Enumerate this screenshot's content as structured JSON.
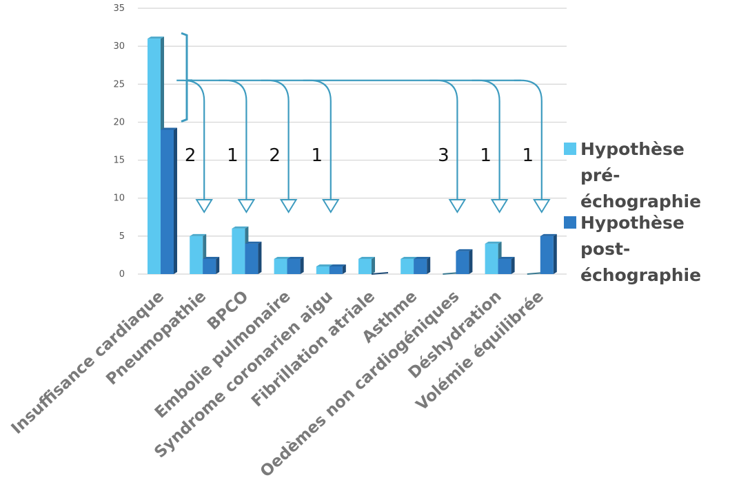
{
  "chart_data": {
    "type": "bar",
    "categories": [
      "Insuffisance cardiaque",
      "Pneumopathie",
      "BPCO",
      "Embolie pulmonaire",
      "Syndrome coronarien aigu",
      "Fibrillation atriale",
      "Asthme",
      "Oedèmes non cardiogéniques",
      "Déshydration",
      "Volémie équilibrée"
    ],
    "series": [
      {
        "name": "Hypothèse pré-échographie",
        "values": [
          31,
          5,
          6,
          2,
          1,
          2,
          2,
          0,
          4,
          0
        ],
        "color": "#5bc8f0"
      },
      {
        "name": "Hypothèse post-échographie",
        "values": [
          19,
          2,
          4,
          2,
          1,
          0,
          2,
          3,
          2,
          5
        ],
        "color": "#2e7bc4"
      }
    ],
    "ylim": [
      0,
      35
    ],
    "yticks": [
      0,
      5,
      10,
      15,
      20,
      25,
      30,
      35
    ],
    "grid": true,
    "legend_position": "right",
    "annotations": {
      "type": "reclassification-arrows",
      "from_category": "Insuffisance cardiaque",
      "arrows": [
        {
          "to": "Pneumopathie",
          "count": "2"
        },
        {
          "to": "BPCO",
          "count": "1"
        },
        {
          "to": "Embolie pulmonaire",
          "count": "2"
        },
        {
          "to": "Syndrome coronarien aigu",
          "count": "1"
        },
        {
          "to": "Oedèmes non cardiogéniques",
          "count": "3"
        },
        {
          "to": "Déshydration",
          "count": "1"
        },
        {
          "to": "Volémie équilibrée",
          "count": "1"
        }
      ],
      "color": "#3d9bbf"
    }
  }
}
